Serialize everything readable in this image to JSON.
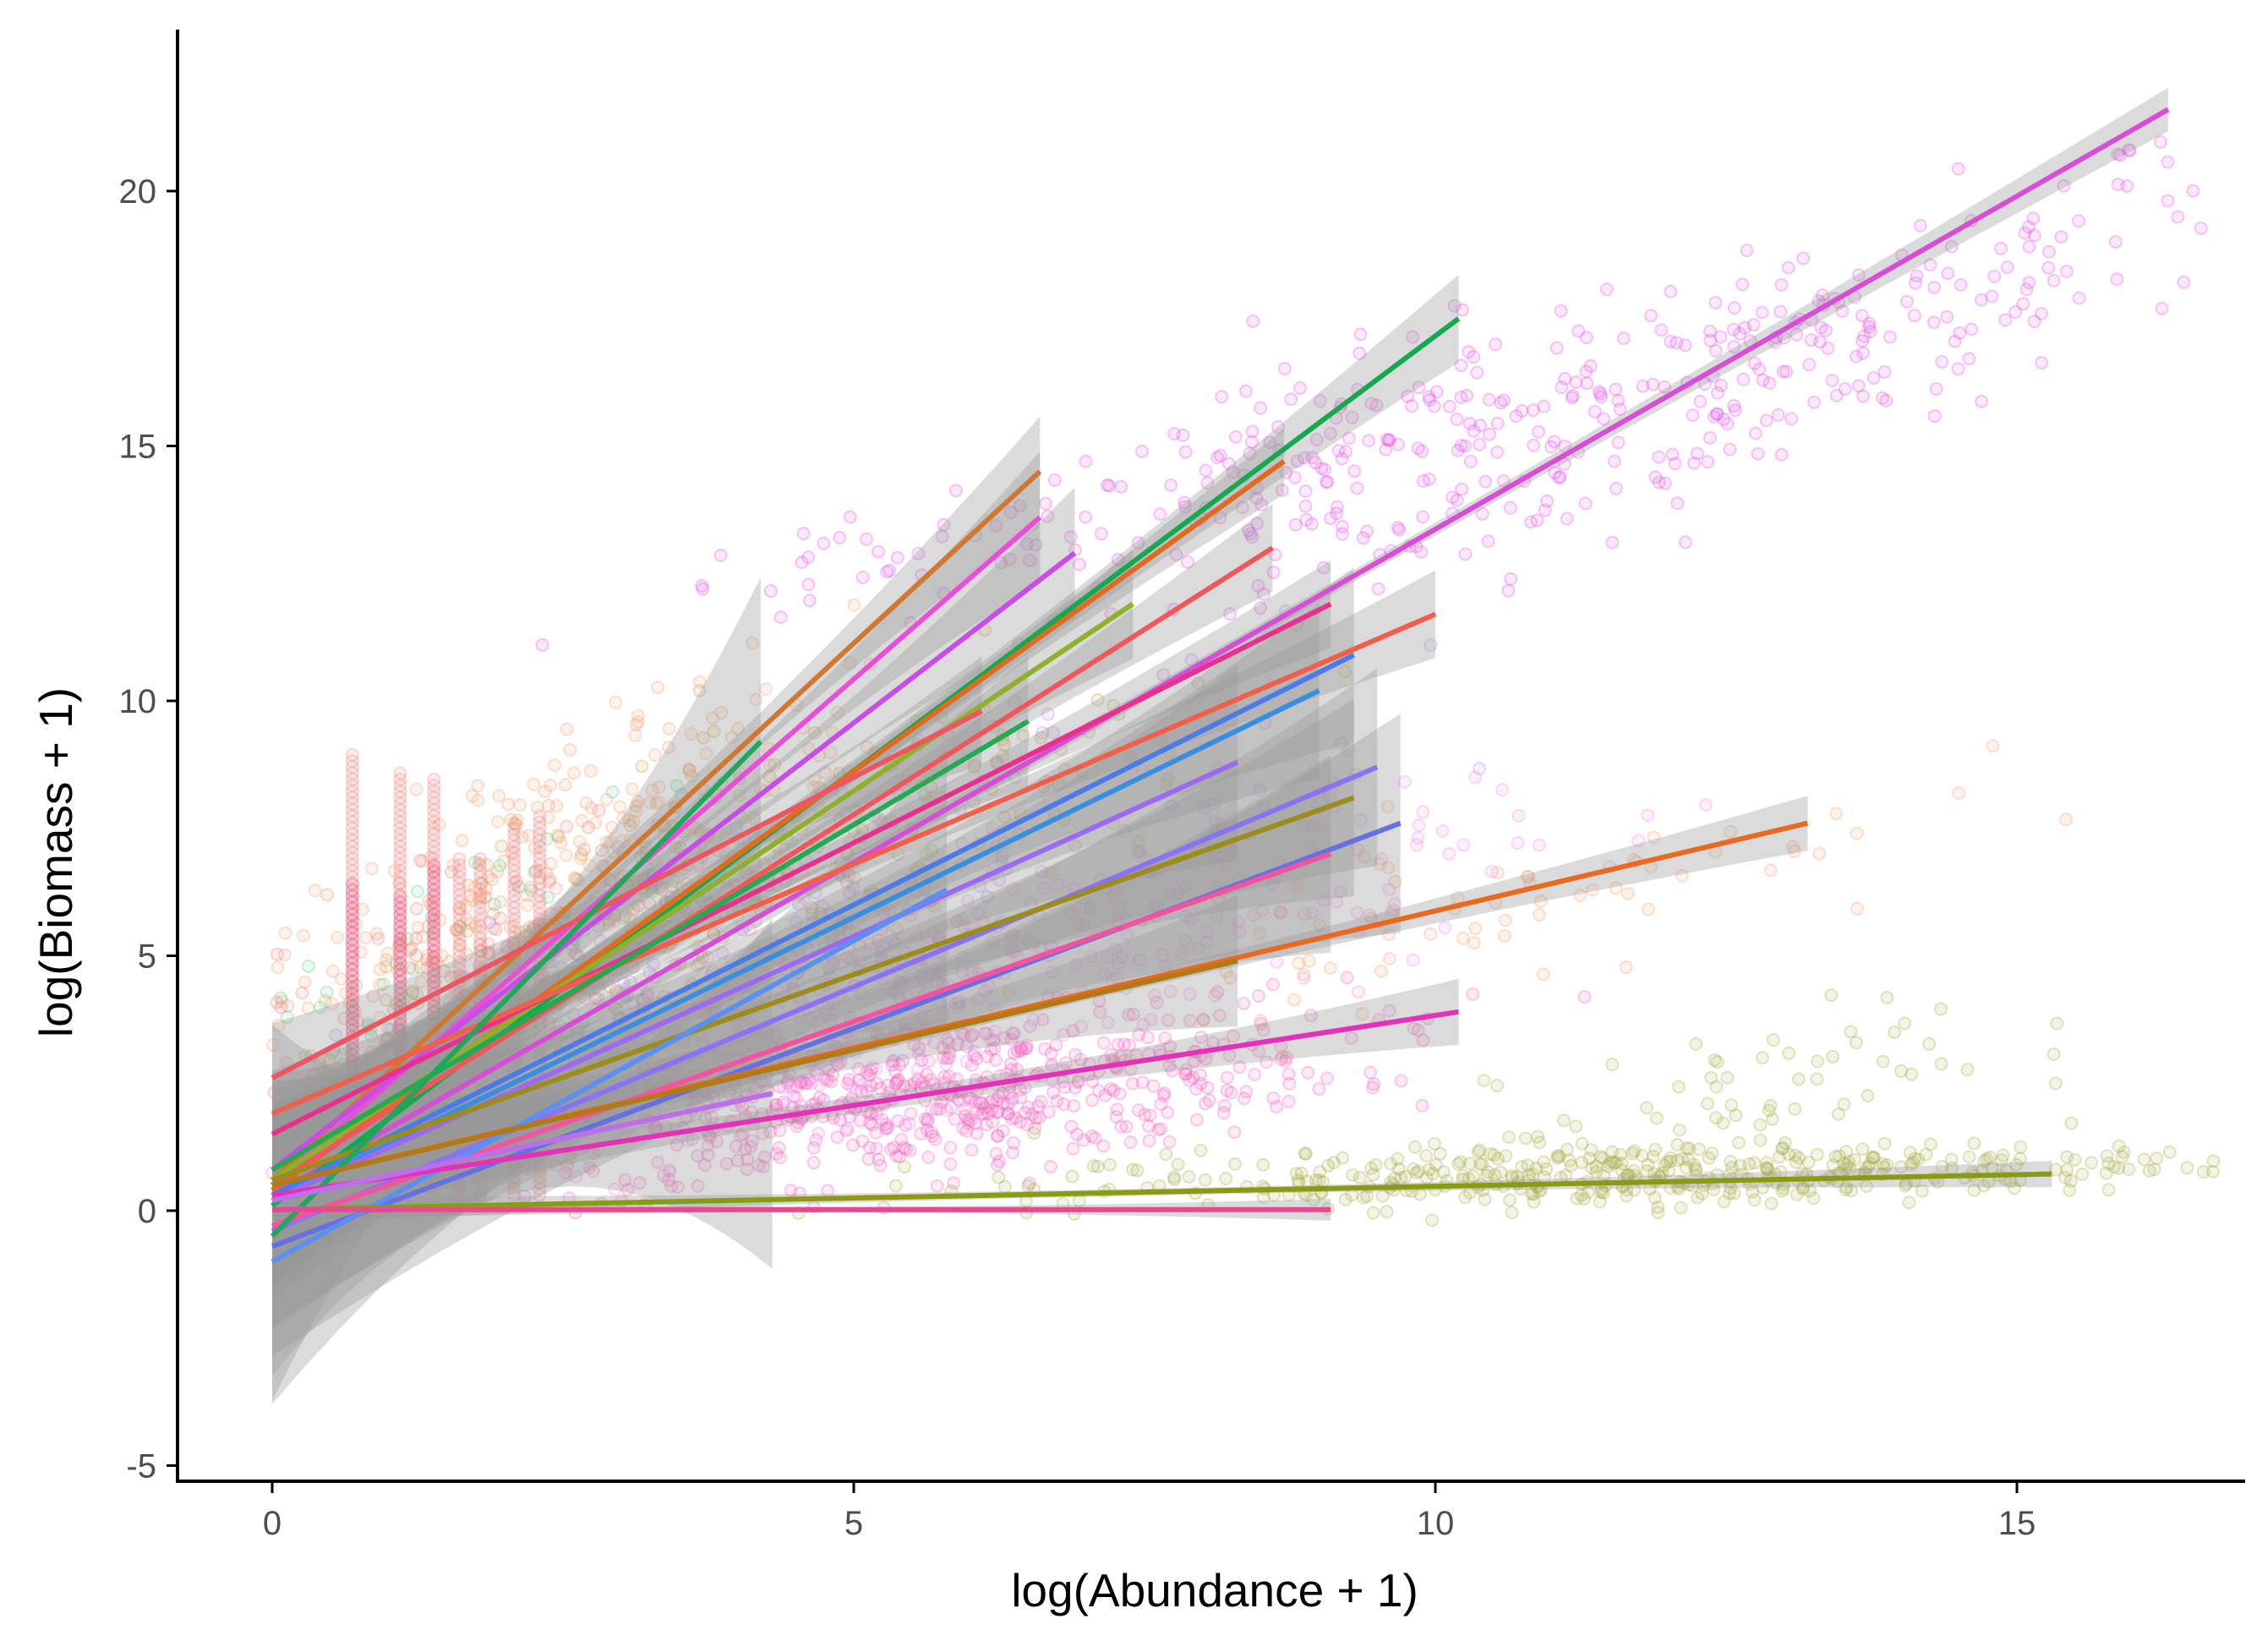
{
  "chart_data": {
    "type": "scatter",
    "title": "",
    "xlabel": "log(Abundance + 1)",
    "ylabel": "log(Biomass + 1)",
    "xlim": [
      -0.82,
      17.15
    ],
    "ylim": [
      -5.2,
      23.1
    ],
    "x_ticks": [
      "0",
      "5",
      "10",
      "15"
    ],
    "y_ticks": [
      "-5",
      "0",
      "5",
      "10",
      "15",
      "20"
    ],
    "grid": false,
    "legend": "none",
    "band_color": "#999999",
    "fits": [
      {
        "color": "#D64ED6",
        "x": [
          0,
          16.3
        ],
        "y": [
          0.3,
          21.6
        ],
        "se": 0.2
      },
      {
        "color": "#14A84F",
        "x": [
          0,
          10.2
        ],
        "y": [
          0.1,
          17.5
        ],
        "se": 0.4
      },
      {
        "color": "#E06A1F",
        "x": [
          0,
          8.7
        ],
        "y": [
          0.4,
          14.7
        ],
        "se": 0.3
      },
      {
        "color": "#D07830",
        "x": [
          0,
          6.6
        ],
        "y": [
          0.6,
          14.5
        ],
        "se": 0.5
      },
      {
        "color": "#E84FD6",
        "x": [
          0,
          6.6
        ],
        "y": [
          0.5,
          13.6
        ],
        "se": 0.6
      },
      {
        "color": "#C94BE8",
        "x": [
          0,
          6.9
        ],
        "y": [
          0.8,
          12.9
        ],
        "se": 0.6
      },
      {
        "color": "#F0575D",
        "x": [
          0,
          8.6
        ],
        "y": [
          0.5,
          13.0
        ],
        "se": 0.4
      },
      {
        "color": "#8FB02A",
        "x": [
          0,
          7.4
        ],
        "y": [
          0.6,
          11.9
        ],
        "se": 0.5
      },
      {
        "color": "#E8318F",
        "x": [
          0,
          9.1
        ],
        "y": [
          1.5,
          11.9
        ],
        "se": 0.4
      },
      {
        "color": "#F05F4A",
        "x": [
          0,
          10.0
        ],
        "y": [
          1.9,
          11.7
        ],
        "se": 0.4
      },
      {
        "color": "#4A7BE8",
        "x": [
          0,
          9.3
        ],
        "y": [
          0.3,
          10.9
        ],
        "se": 0.8
      },
      {
        "color": "#3A8EE0",
        "x": [
          0,
          9.0
        ],
        "y": [
          0.2,
          10.2
        ],
        "se": 0.8
      },
      {
        "color": "#23AA52",
        "x": [
          0,
          6.5
        ],
        "y": [
          0.8,
          9.6
        ],
        "se": 0.6
      },
      {
        "color": "#EE5562",
        "x": [
          0,
          6.1
        ],
        "y": [
          2.6,
          9.8
        ],
        "se": 0.5
      },
      {
        "color": "#9A6BF0",
        "x": [
          0,
          8.3
        ],
        "y": [
          0.2,
          8.8
        ],
        "se": 0.9
      },
      {
        "color": "#8A72F4",
        "x": [
          0,
          9.5
        ],
        "y": [
          -0.4,
          8.7
        ],
        "se": 0.9
      },
      {
        "color": "#9B8C1C",
        "x": [
          0,
          9.3
        ],
        "y": [
          0.6,
          8.1
        ],
        "se": 0.9
      },
      {
        "color": "#6670E0",
        "x": [
          0,
          9.7
        ],
        "y": [
          -0.7,
          7.6
        ],
        "se": 1.0
      },
      {
        "color": "#E86A20",
        "x": [
          0,
          13.2
        ],
        "y": [
          0.5,
          7.6
        ],
        "se": 0.25
      },
      {
        "color": "#F2559E",
        "x": [
          0,
          9.1
        ],
        "y": [
          -0.3,
          7.0
        ],
        "se": 0.9
      },
      {
        "color": "#5B8FF0",
        "x": [
          0,
          5.8
        ],
        "y": [
          -1.0,
          6.3
        ],
        "se": 1.3
      },
      {
        "color": "#1FA85A",
        "x": [
          0,
          4.2
        ],
        "y": [
          -0.5,
          9.2
        ],
        "se": 1.5
      },
      {
        "color": "#B07A18",
        "x": [
          0,
          8.3
        ],
        "y": [
          0.5,
          4.9
        ],
        "se": 0.6
      },
      {
        "color": "#E233B8",
        "x": [
          0,
          10.2
        ],
        "y": [
          0.3,
          3.9
        ],
        "se": 0.3
      },
      {
        "color": "#BC6FE8",
        "x": [
          0,
          4.3
        ],
        "y": [
          0.2,
          2.3
        ],
        "se": 1.6
      },
      {
        "color": "#8A9A12",
        "x": [
          0,
          15.3
        ],
        "y": [
          0.02,
          0.72
        ],
        "se": 0.12
      },
      {
        "color": "#EC4592",
        "x": [
          0,
          9.1
        ],
        "y": [
          0.02,
          0.02
        ],
        "se": 0.1
      }
    ],
    "point_clusters": [
      {
        "color": "#DD4FE0",
        "cx": 12.8,
        "cy": 16.5,
        "sx": 2.1,
        "sy": 1.8,
        "slope": 0.85,
        "n": 260
      },
      {
        "color": "#DD4FE0",
        "cx": 9.0,
        "cy": 14.7,
        "sx": 1.3,
        "sy": 1.6,
        "slope": 0.7,
        "n": 140
      },
      {
        "color": "#DD4FE0",
        "cx": 5.5,
        "cy": 12.8,
        "sx": 1.2,
        "sy": 0.8,
        "slope": 0.4,
        "n": 40
      },
      {
        "color": "#F05FB8",
        "cx": 5.6,
        "cy": 2.2,
        "sx": 1.8,
        "sy": 1.2,
        "slope": 0.25,
        "n": 600
      },
      {
        "color": "#EE88E8",
        "cx": 5.5,
        "cy": 4.3,
        "sx": 2.3,
        "sy": 1.8,
        "slope": 0.6,
        "n": 450
      },
      {
        "color": "#F2A070",
        "cx": 2.4,
        "cy": 6.5,
        "sx": 1.3,
        "sy": 2.3,
        "slope": 1.0,
        "n": 320
      },
      {
        "color": "#F2A070",
        "cx": 10.5,
        "cy": 6.0,
        "sx": 1.8,
        "sy": 1.6,
        "slope": 0.5,
        "n": 70
      },
      {
        "color": "#9FAD3A",
        "cx": 11.5,
        "cy": 0.7,
        "sx": 2.5,
        "sy": 0.5,
        "slope": 0.05,
        "n": 420
      },
      {
        "color": "#9FAD3A",
        "cx": 12.7,
        "cy": 2.3,
        "sx": 1.1,
        "sy": 1.1,
        "slope": 0.5,
        "n": 60
      },
      {
        "color": "#5FCB83",
        "cx": 2.0,
        "cy": 4.5,
        "sx": 1.4,
        "sy": 2.0,
        "slope": 1.1,
        "n": 150
      },
      {
        "color": "#F37A7A",
        "cx": 1.8,
        "cy": 4.2,
        "sx": 1.2,
        "sy": 2.2,
        "slope": 1.1,
        "n": 200
      },
      {
        "color": "#C8A040",
        "cx": 4.5,
        "cy": 6.5,
        "sx": 2.0,
        "sy": 2.2,
        "slope": 0.8,
        "n": 200
      },
      {
        "color": "#B08CF0",
        "cx": 4.0,
        "cy": 5.0,
        "sx": 2.0,
        "sy": 2.0,
        "slope": 0.9,
        "n": 180
      }
    ],
    "stacked_columns": [
      {
        "x": 0.69,
        "y_from": 0.3,
        "y_to": 9.0,
        "color": "#F08080"
      },
      {
        "x": 0.69,
        "y_from": 1.0,
        "y_to": 6.5,
        "color": "#E8558E"
      },
      {
        "x": 1.1,
        "y_from": 0.3,
        "y_to": 8.7,
        "color": "#F08080"
      },
      {
        "x": 1.1,
        "y_from": 1.0,
        "y_to": 6.2,
        "color": "#E8558E"
      },
      {
        "x": 1.39,
        "y_from": 0.3,
        "y_to": 8.5,
        "color": "#F08080"
      },
      {
        "x": 1.39,
        "y_from": 1.0,
        "y_to": 6.8,
        "color": "#E8558E"
      },
      {
        "x": 1.61,
        "y_from": 0.3,
        "y_to": 7.0,
        "color": "#F08080"
      },
      {
        "x": 1.79,
        "y_from": 0.3,
        "y_to": 7.0,
        "color": "#F08080"
      },
      {
        "x": 2.08,
        "y_from": 0.3,
        "y_to": 7.6,
        "color": "#F08080"
      },
      {
        "x": 2.3,
        "y_from": 0.3,
        "y_to": 7.8,
        "color": "#F08080"
      }
    ]
  }
}
